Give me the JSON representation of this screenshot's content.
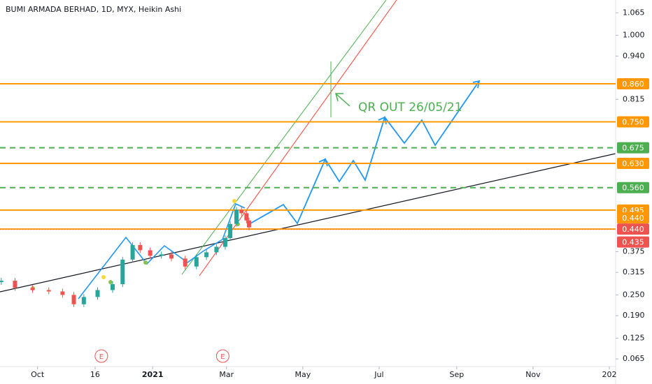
{
  "chart_data": {
    "type": "candlestick",
    "title": "BUMI ARMADA BERHAD, 1D, MYX, Heikin Ashi",
    "xlim": [
      "2020-09-01",
      "2022-01-06"
    ],
    "ylim": [
      0.043,
      1.102
    ],
    "yticks": [
      {
        "value": 1.065,
        "label": "1.065"
      },
      {
        "value": 1.0,
        "label": "1.000"
      },
      {
        "value": 0.94,
        "label": "0.940"
      },
      {
        "value": 0.815,
        "label": "0.815"
      },
      {
        "value": 0.375,
        "label": "0.375"
      },
      {
        "value": 0.315,
        "label": "0.315"
      },
      {
        "value": 0.25,
        "label": "0.250"
      },
      {
        "value": 0.19,
        "label": "0.190"
      },
      {
        "value": 0.125,
        "label": "0.125"
      },
      {
        "value": 0.065,
        "label": "0.065"
      }
    ],
    "xticks": [
      {
        "value": "2020-10-01",
        "label": "Oct"
      },
      {
        "value": "2020-11-16",
        "label": "16"
      },
      {
        "value": "2021-01-01",
        "label": "2021"
      },
      {
        "value": "2021-03-01",
        "label": "Mar"
      },
      {
        "value": "2021-05-01",
        "label": "May"
      },
      {
        "value": "2021-07-01",
        "label": "Jul"
      },
      {
        "value": "2021-09-01",
        "label": "Sep"
      },
      {
        "value": "2021-11-01",
        "label": "Nov"
      },
      {
        "value": "2022-01-01",
        "label": "202"
      }
    ],
    "x": [
      "2020-09-02",
      "2020-09-13",
      "2020-09-27",
      "2020-10-10",
      "2020-10-21",
      "2020-10-30",
      "2020-11-07",
      "2020-11-18",
      "2020-11-30",
      "2020-12-08",
      "2020-12-16",
      "2020-12-22",
      "2020-12-30",
      "2021-01-08",
      "2021-01-16",
      "2021-01-27",
      "2021-02-05",
      "2021-02-13",
      "2021-02-21",
      "2021-02-28",
      "2021-03-04",
      "2021-03-09",
      "2021-03-13",
      "2021-03-17",
      "2021-03-19"
    ],
    "series": [
      {
        "values": [
          0.291,
          0.27,
          0.264,
          0.26,
          0.25,
          0.223,
          0.244,
          0.264,
          0.281,
          0.352,
          0.394,
          0.379,
          0.363,
          0.367,
          0.355,
          0.332,
          0.359,
          0.373,
          0.389,
          0.414,
          0.455,
          0.496,
          0.486,
          0.465,
          0.445
        ],
        "up_color": "#26a69a",
        "down_color": "#ef5350"
      }
    ],
    "levels": [
      {
        "value": 0.86,
        "label": "0.860",
        "color": "#ff9800",
        "style": "solid"
      },
      {
        "value": 0.75,
        "label": "0.750",
        "color": "#ff9800",
        "style": "solid"
      },
      {
        "value": 0.675,
        "label": "0.675",
        "color": "#4caf50",
        "style": "dashed"
      },
      {
        "value": 0.63,
        "label": "0.630",
        "color": "#ff9800",
        "style": "solid"
      },
      {
        "value": 0.56,
        "label": "0.560",
        "color": "#4caf50",
        "style": "dashed"
      },
      {
        "value": 0.495,
        "label": "0.495",
        "color": "#ff9800",
        "style": "solid"
      },
      {
        "value": 0.44,
        "label": "0.440",
        "color": "#ff9800",
        "style": "solid"
      }
    ],
    "current_price": {
      "value": 0.44,
      "label": "0.440",
      "color": "#ef5350"
    },
    "low_price": {
      "value": 0.435,
      "label": "0.435",
      "color": "#ef5350"
    },
    "events": [
      {
        "date": "2020-11-21",
        "label": "E"
      },
      {
        "date": "2021-02-26",
        "label": "E"
      }
    ],
    "annotation": "QR OUT 26/05/21"
  }
}
